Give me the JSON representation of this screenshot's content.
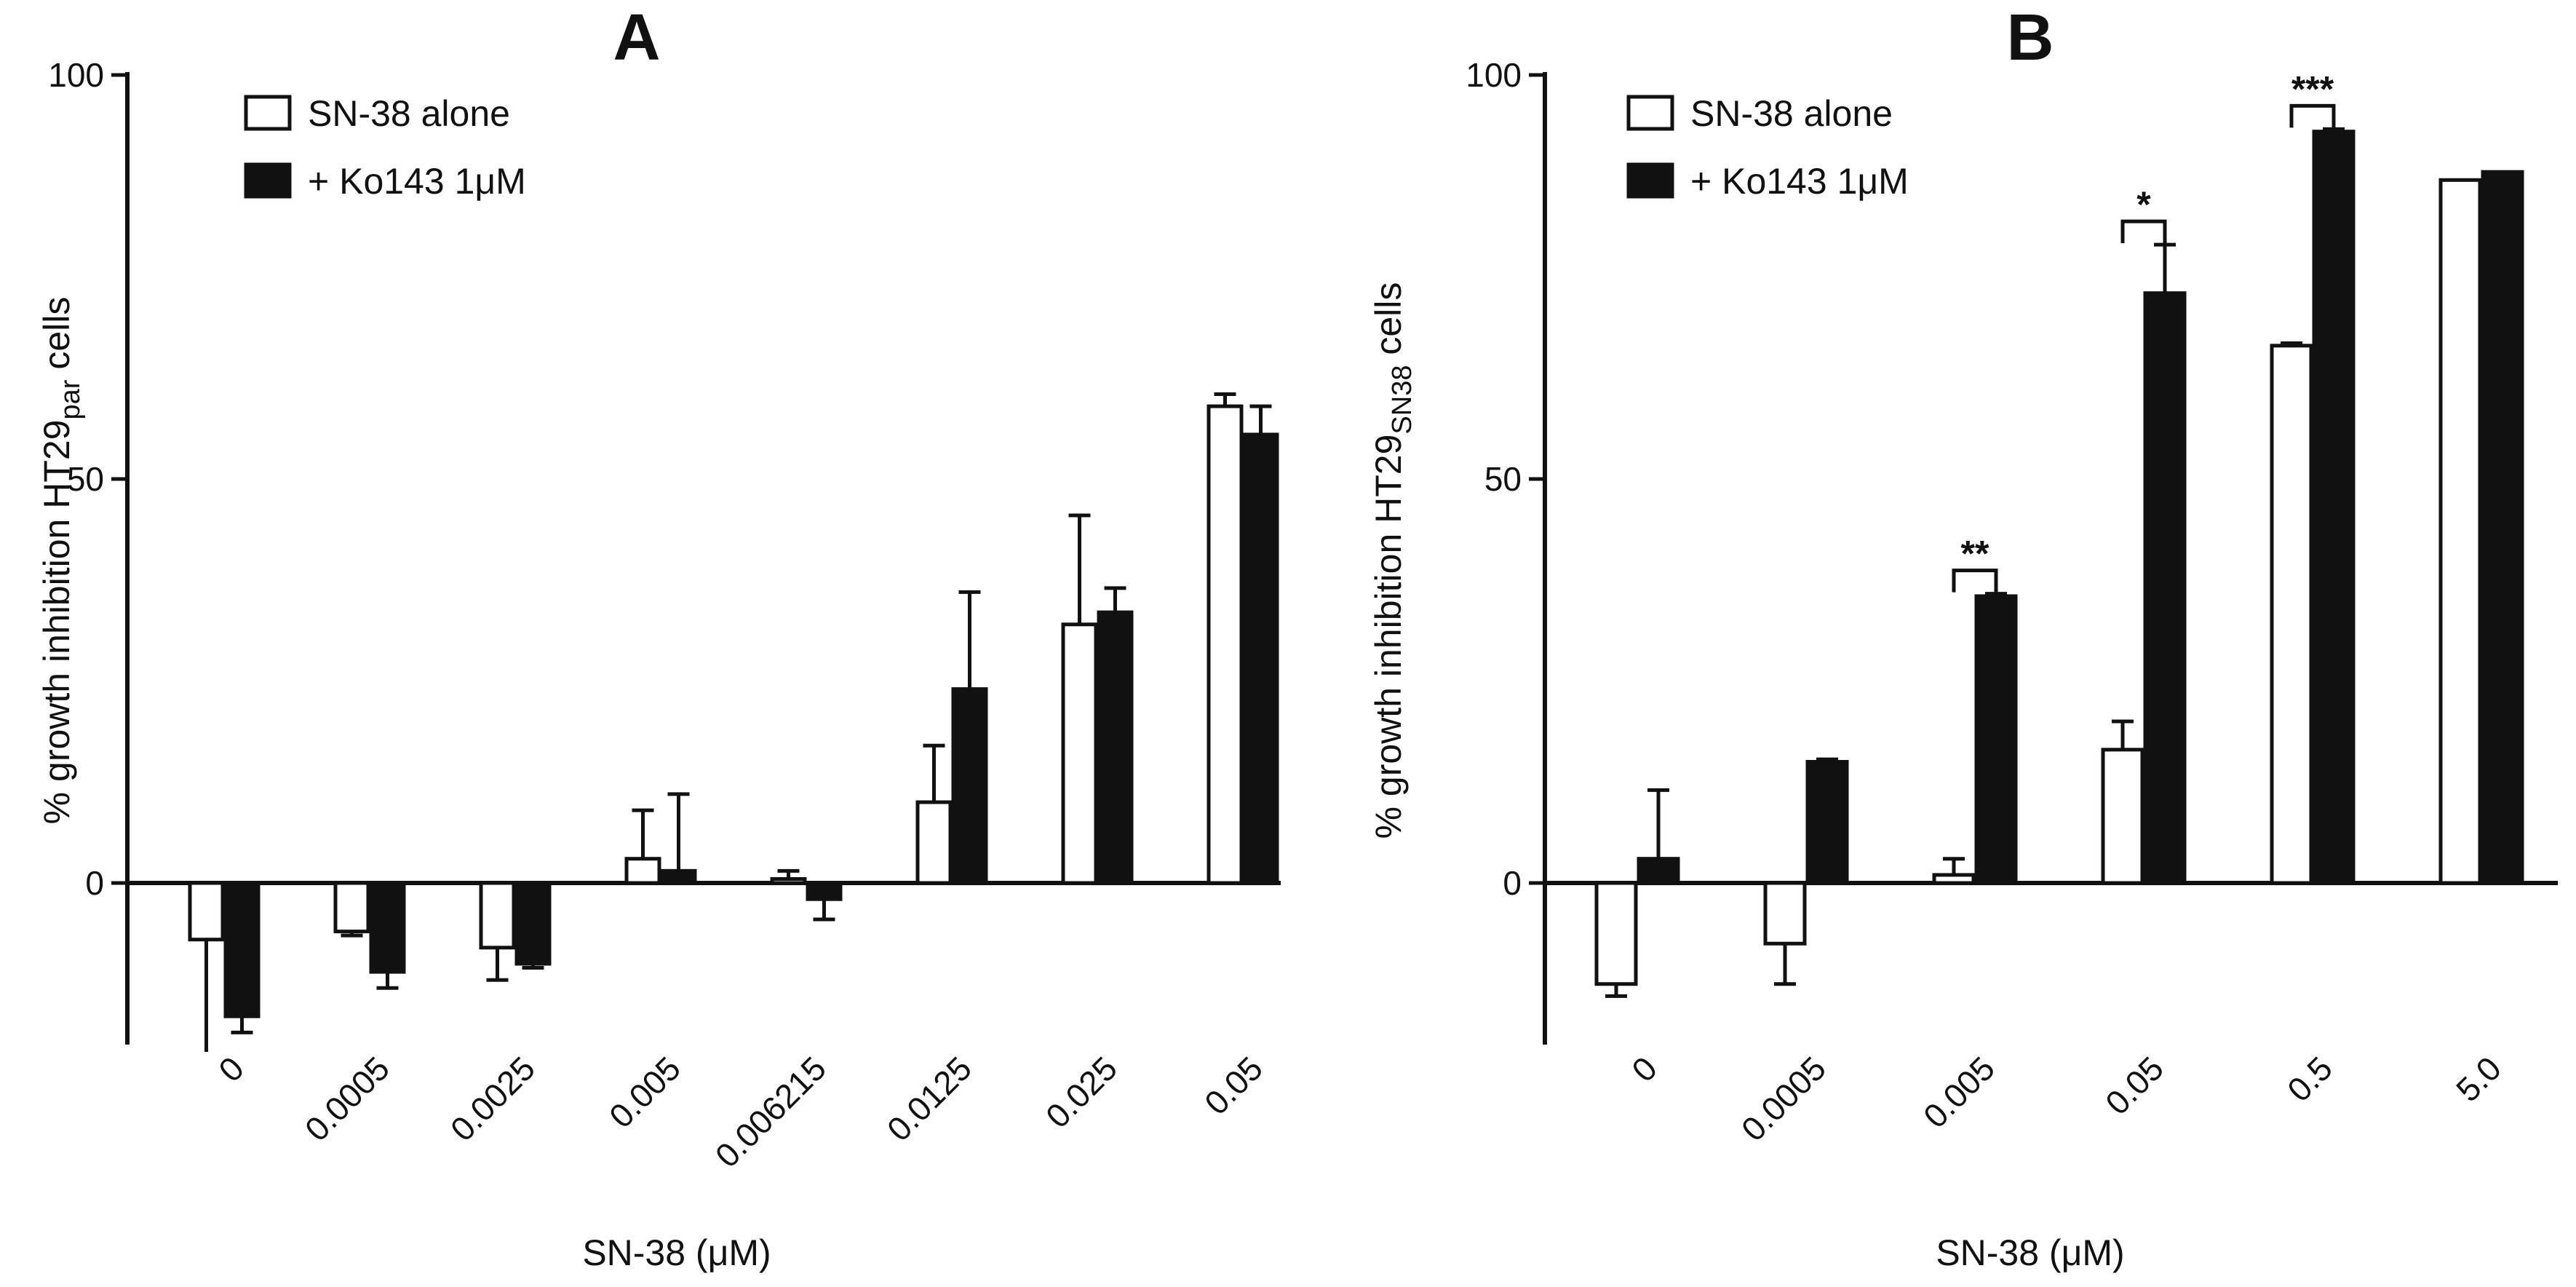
{
  "chart_data": [
    {
      "type": "bar",
      "panel_label": "A",
      "title": "",
      "xlabel": "SN-38 (μM)",
      "ylabel": "% growth inhibition HT29",
      "ylabel_subscript": "par",
      "ylabel_suffix": " cells",
      "ylim": [
        -20,
        100
      ],
      "yticks": [
        0,
        50,
        100
      ],
      "categories": [
        "0",
        "0.0005",
        "0.0025",
        "0.005",
        "0.006215",
        "0.0125",
        "0.025",
        "0.05"
      ],
      "legend_position": "top-left",
      "series": [
        {
          "name": "SN-38 alone",
          "fill": "#ffffff",
          "values": [
            -7,
            -6,
            -8,
            3,
            0.5,
            10,
            32,
            59
          ],
          "errors": [
            16,
            0.5,
            4,
            6,
            1,
            7,
            13.5,
            1.5
          ]
        },
        {
          "name": "+ Ko143 1μM",
          "fill": "#111111",
          "values": [
            -16.5,
            -11,
            -10,
            1.5,
            -2,
            24,
            33.5,
            55.5
          ],
          "errors": [
            2,
            2,
            0.5,
            9.5,
            2.5,
            12,
            3,
            3.5
          ]
        }
      ],
      "significance": []
    },
    {
      "type": "bar",
      "panel_label": "B",
      "title": "",
      "xlabel": "SN-38 (μM)",
      "ylabel": "% growth inhibition HT29",
      "ylabel_subscript": "SN38",
      "ylabel_suffix": " cells",
      "ylim": [
        -20,
        100
      ],
      "yticks": [
        0,
        50,
        100
      ],
      "categories": [
        "0",
        "0.0005",
        "0.005",
        "0.05",
        "0.5",
        "5.0"
      ],
      "legend_position": "top-left",
      "series": [
        {
          "name": "SN-38 alone",
          "fill": "#ffffff",
          "values": [
            -12.5,
            -7.5,
            1,
            16.5,
            66.5,
            87
          ],
          "errors": [
            1.5,
            5,
            2,
            3.5,
            0.3,
            0
          ]
        },
        {
          "name": "+ Ko143 1μM",
          "fill": "#111111",
          "values": [
            3,
            15,
            35.5,
            73,
            93,
            88
          ],
          "errors": [
            8.5,
            0.3,
            0.3,
            6,
            0.3,
            0
          ]
        }
      ],
      "significance": [
        {
          "category_index": 2,
          "label": "**"
        },
        {
          "category_index": 3,
          "label": "*"
        },
        {
          "category_index": 4,
          "label": "***"
        }
      ]
    }
  ]
}
